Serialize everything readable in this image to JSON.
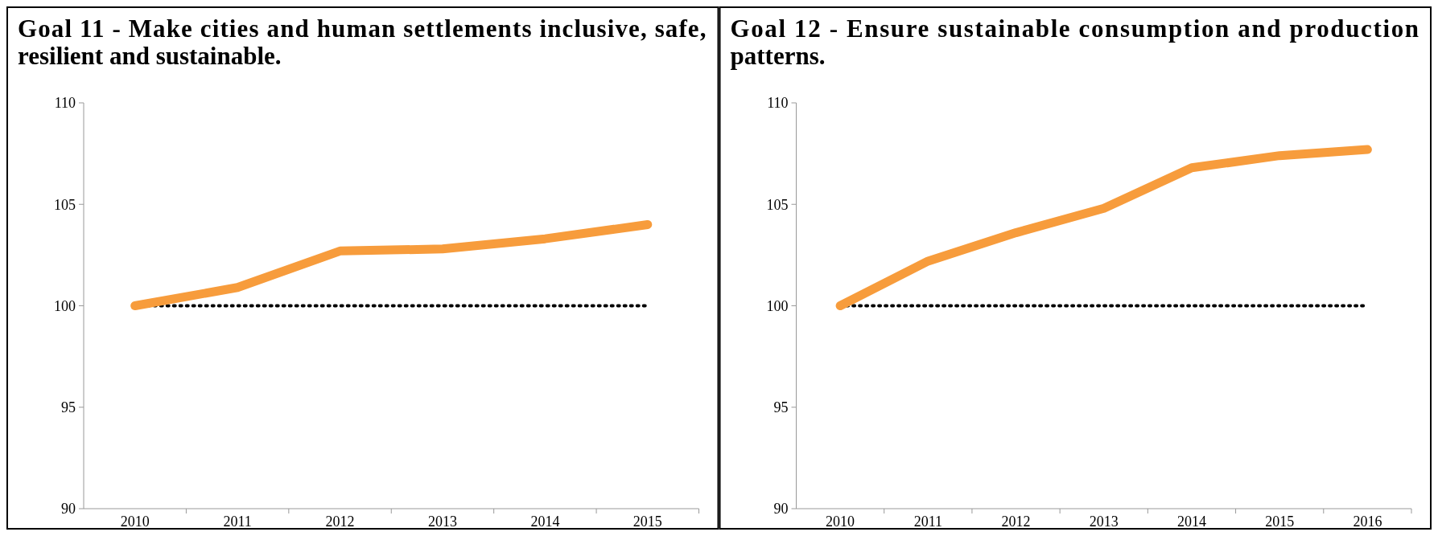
{
  "chart_data": [
    {
      "type": "line",
      "title": "Goal 11 - Make cities and human settlements inclusive, safe, resilient and sustainable.",
      "categories": [
        "2010",
        "2011",
        "2012",
        "2013",
        "2014",
        "2015"
      ],
      "series": [
        {
          "color": "#f79c3c",
          "values": [
            100,
            100.9,
            102.7,
            102.8,
            103.3,
            104.0
          ]
        }
      ],
      "ylim": [
        90,
        110
      ],
      "yticks": [
        90,
        95,
        100,
        105,
        110
      ],
      "grid": false,
      "ref_lines": [
        {
          "axis": "y",
          "value": 100,
          "color": "#000000",
          "line_style": "dotted"
        }
      ]
    },
    {
      "type": "line",
      "title": "Goal 12 - Ensure sustainable consumption and production patterns.",
      "categories": [
        "2010",
        "2011",
        "2012",
        "2013",
        "2014",
        "2015",
        "2016"
      ],
      "series": [
        {
          "color": "#f79c3c",
          "values": [
            100,
            102.2,
            103.6,
            104.8,
            106.8,
            107.4,
            107.7
          ]
        }
      ],
      "ylim": [
        90,
        110
      ],
      "yticks": [
        90,
        95,
        100,
        105,
        110
      ],
      "grid": false,
      "ref_lines": [
        {
          "axis": "y",
          "value": 100,
          "color": "#000000",
          "line_style": "dotted"
        }
      ]
    }
  ]
}
